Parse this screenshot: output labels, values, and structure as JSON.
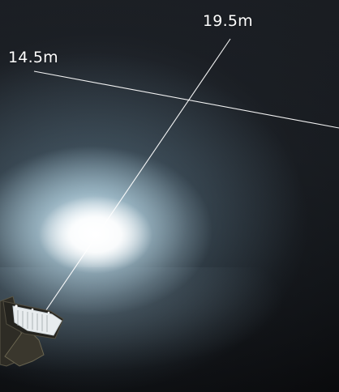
{
  "labels": {
    "beam_width": "14.5m",
    "throw_distance": "19.5m"
  },
  "colors": {
    "measure_line": "#ffffff",
    "beam_core": "#ffffff",
    "beam_halo": "#bfe2f2",
    "background": "#16191d",
    "fixture_body": "#2b2a24",
    "fixture_lens": "#e9edef"
  },
  "icons": {
    "fixture": "floodlight-icon"
  }
}
